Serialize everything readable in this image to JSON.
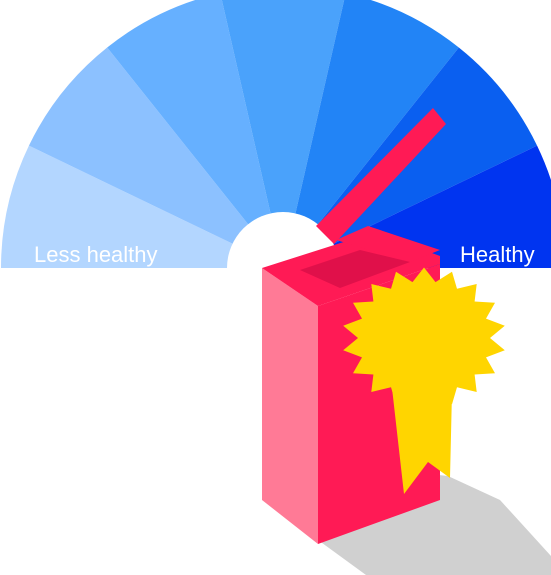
{
  "gauge": {
    "left_label": "Less healthy",
    "right_label": "Healthy",
    "segment_colors": [
      "#b3d6ff",
      "#8cc1ff",
      "#66b0ff",
      "#4aa2fb",
      "#2284f6",
      "#0a5ff0",
      "#0034f0"
    ],
    "needle_color": "#ff1a55"
  },
  "package": {
    "front_color": "#ff1a55",
    "side_color": "#ff7a96",
    "shadow_color": "#d0d0d0",
    "badge_color": "#ffd500",
    "badge_icon": "award-rosette-icon"
  }
}
